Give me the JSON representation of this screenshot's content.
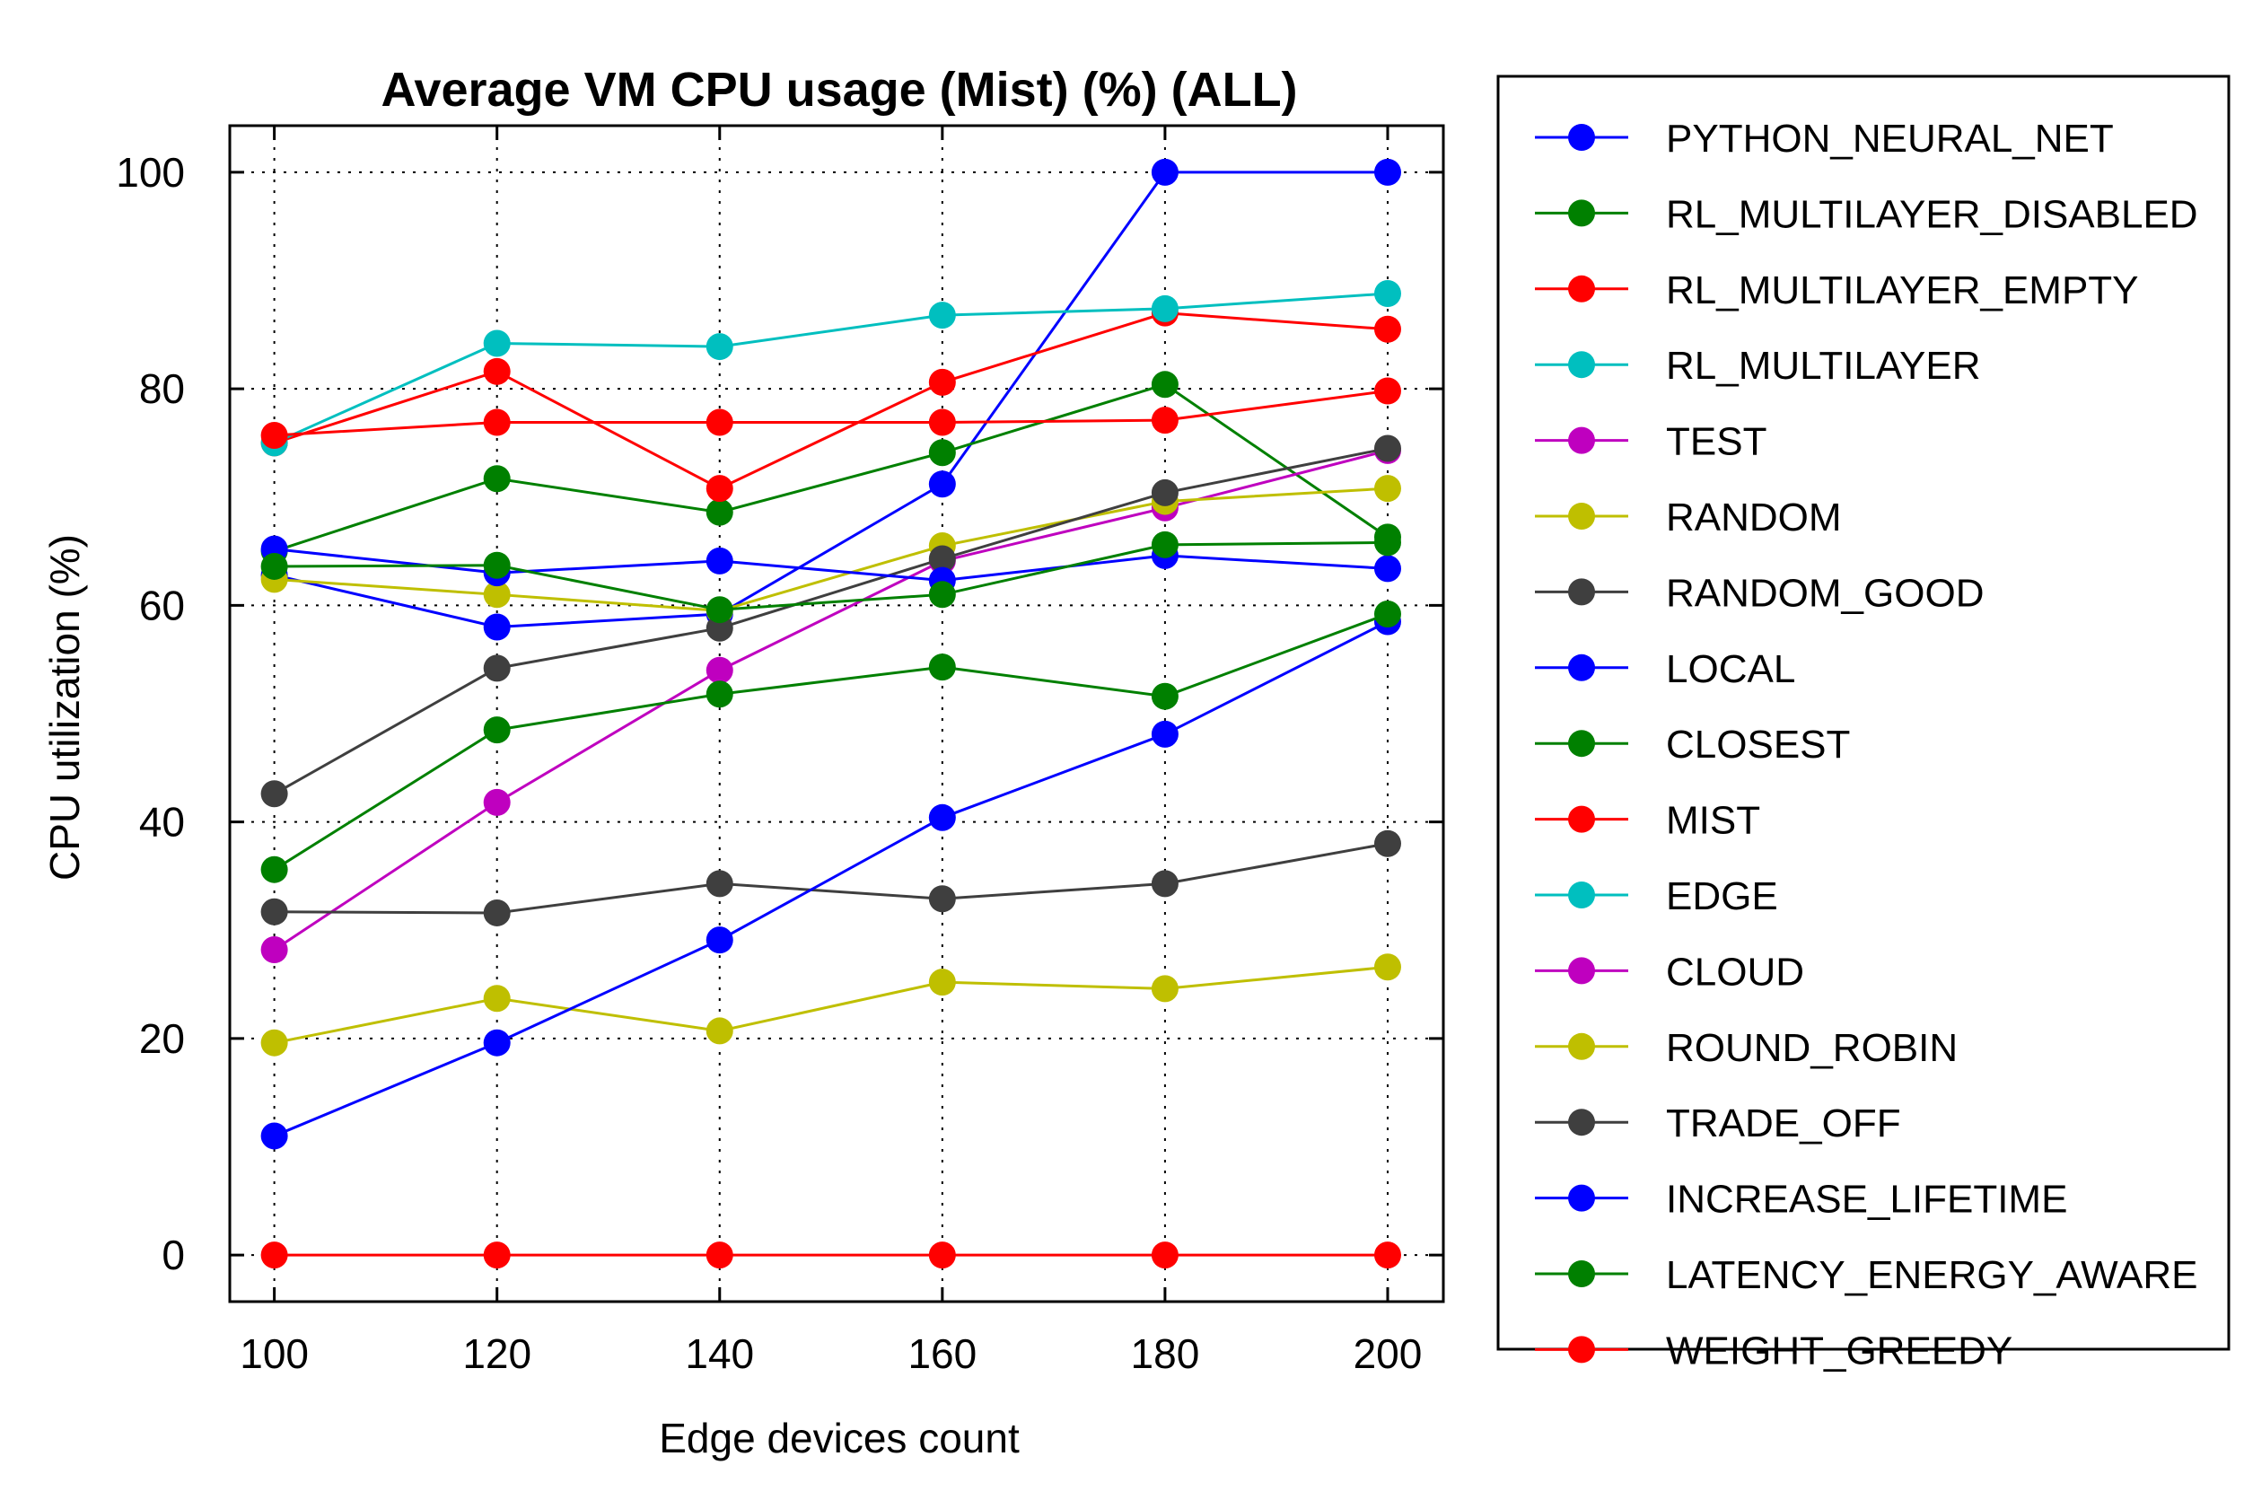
{
  "chart_data": {
    "type": "line",
    "title": "Average VM CPU usage (Mist) (%) (ALL)",
    "xlabel": "Edge devices count",
    "ylabel": "CPU utilization (%)",
    "x": [
      100,
      120,
      140,
      160,
      180,
      200
    ],
    "xticks": [
      "100",
      "120",
      "140",
      "160",
      "180",
      "200"
    ],
    "yticks": [
      "0",
      "20",
      "40",
      "60",
      "80",
      "100"
    ],
    "xlim": [
      96,
      205
    ],
    "ylim": [
      -4.3,
      104.3
    ],
    "grid": true,
    "legend_position": "right-outside",
    "series": [
      {
        "name": "PYTHON_NEURAL_NET",
        "color": "#0000ff",
        "values": [
          62.8,
          58.0,
          59.2,
          71.2,
          100.0,
          100.0
        ]
      },
      {
        "name": "RL_MULTILAYER_DISABLED",
        "color": "#008000",
        "values": [
          65.0,
          71.7,
          68.6,
          74.1,
          80.4,
          66.3
        ]
      },
      {
        "name": "RL_MULTILAYER_EMPTY",
        "color": "#ff0000",
        "values": [
          75.0,
          81.6,
          70.8,
          80.6,
          87.0,
          85.5
        ]
      },
      {
        "name": "RL_MULTILAYER",
        "color": "#00bfbf",
        "values": [
          75.0,
          84.2,
          83.9,
          86.8,
          87.4,
          88.8
        ]
      },
      {
        "name": "TEST",
        "color": "#bf00bf",
        "values": [
          28.2,
          41.8,
          54.0,
          64.1,
          69.0,
          74.3
        ]
      },
      {
        "name": "RANDOM",
        "color": "#bfbf00",
        "values": [
          62.4,
          61.0,
          59.5,
          65.5,
          69.6,
          70.8
        ]
      },
      {
        "name": "RANDOM_GOOD",
        "color": "#3f3f3f",
        "values": [
          42.6,
          54.2,
          57.9,
          64.3,
          70.4,
          74.5
        ]
      },
      {
        "name": "LOCAL",
        "color": "#0000ff",
        "values": [
          65.2,
          63.0,
          64.1,
          62.3,
          64.6,
          63.4
        ]
      },
      {
        "name": "CLOSEST",
        "color": "#008000",
        "values": [
          63.6,
          63.7,
          59.6,
          61.0,
          65.6,
          65.8
        ]
      },
      {
        "name": "MIST",
        "color": "#ff0000",
        "values": [
          75.7,
          76.9,
          76.9,
          76.9,
          77.1,
          79.8
        ]
      },
      {
        "name": "EDGE",
        "color": "#00bfbf",
        "values": [
          null,
          null,
          null,
          null,
          null,
          null
        ]
      },
      {
        "name": "CLOUD",
        "color": "#bf00bf",
        "values": [
          null,
          null,
          null,
          null,
          null,
          null
        ]
      },
      {
        "name": "ROUND_ROBIN",
        "color": "#bfbf00",
        "values": [
          19.6,
          23.7,
          20.7,
          25.2,
          24.6,
          26.6
        ]
      },
      {
        "name": "TRADE_OFF",
        "color": "#3f3f3f",
        "values": [
          31.7,
          31.6,
          34.3,
          32.9,
          34.3,
          38.0
        ]
      },
      {
        "name": "INCREASE_LIFETIME",
        "color": "#0000ff",
        "values": [
          11.0,
          19.6,
          29.1,
          40.4,
          48.1,
          58.5
        ]
      },
      {
        "name": "LATENCY_ENERGY_AWARE",
        "color": "#008000",
        "values": [
          35.6,
          48.5,
          51.8,
          54.3,
          51.6,
          59.2
        ]
      },
      {
        "name": "WEIGHT_GREEDY",
        "color": "#ff0000",
        "values": [
          0,
          0,
          0,
          0,
          0,
          0
        ]
      }
    ]
  }
}
